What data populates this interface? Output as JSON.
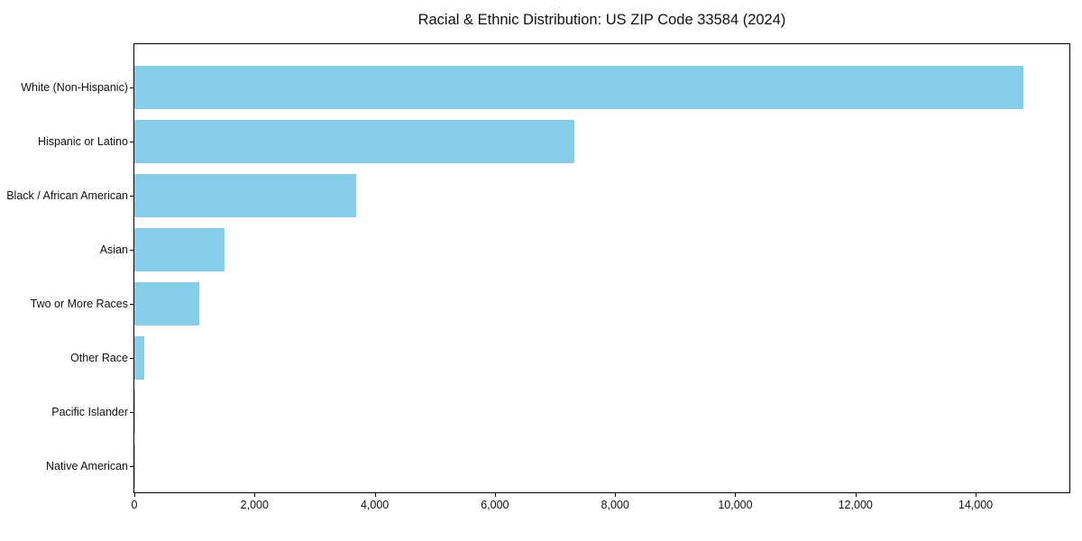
{
  "chart_data": {
    "type": "bar",
    "orientation": "horizontal",
    "title": "Racial & Ethnic Distribution: US ZIP Code 33584 (2024)",
    "categories": [
      "White (Non-Hispanic)",
      "Hispanic or Latino",
      "Black / African American",
      "Asian",
      "Two or More Races",
      "Other Race",
      "Pacific Islander",
      "Native American"
    ],
    "values": [
      14800,
      7320,
      3690,
      1500,
      1080,
      160,
      15,
      5
    ],
    "xlabel": "",
    "ylabel": "",
    "xlim": [
      0,
      15560
    ],
    "xticks": [
      0,
      2000,
      4000,
      6000,
      8000,
      10000,
      12000,
      14000
    ],
    "xtick_labels": [
      "0",
      "2,000",
      "4,000",
      "6,000",
      "8,000",
      "10,000",
      "12,000",
      "14,000"
    ],
    "bar_color": "#87CEEB",
    "grid": false,
    "legend": false
  }
}
